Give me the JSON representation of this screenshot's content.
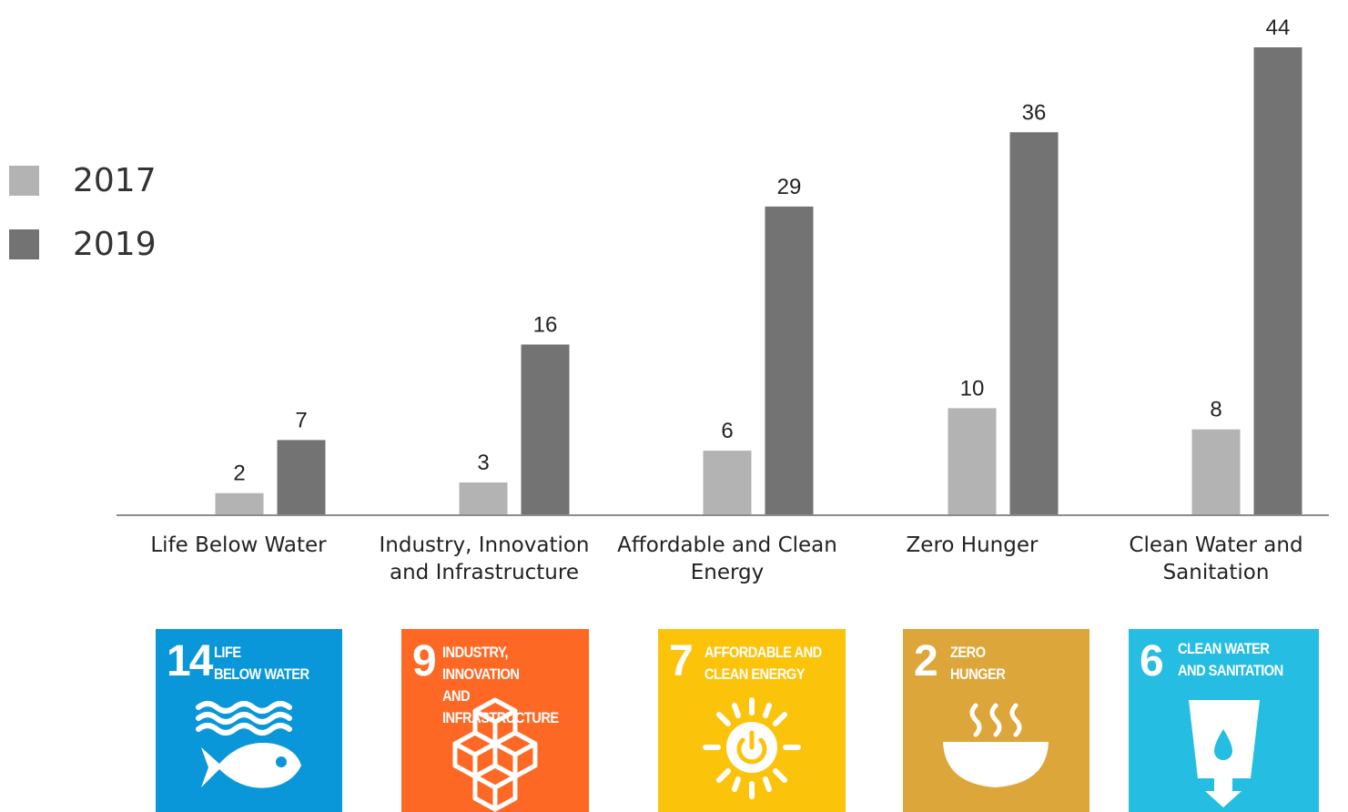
{
  "chart_data": {
    "type": "bar",
    "categories": [
      "Life Below Water",
      "Industry, Innovation and Infrastructure",
      "Affordable and Clean Energy",
      "Zero Hunger",
      "Clean Water and Sanitation"
    ],
    "category_label_lines": [
      [
        "Life Below Water"
      ],
      [
        "Industry, Innovation",
        "and Infrastructure"
      ],
      [
        "Affordable and Clean",
        "Energy"
      ],
      [
        "Zero Hunger"
      ],
      [
        "Clean Water and",
        "Sanitation"
      ]
    ],
    "series": [
      {
        "name": "2017",
        "color": "#b3b3b3",
        "values": [
          2,
          3,
          6,
          10,
          8
        ]
      },
      {
        "name": "2019",
        "color": "#737373",
        "values": [
          7,
          16,
          29,
          36,
          44
        ]
      }
    ],
    "ylim": [
      0,
      44
    ],
    "grid": false,
    "legend_position": "left",
    "data_labels": true
  },
  "legend": {
    "items": [
      {
        "label": "2017",
        "color": "#b3b3b3"
      },
      {
        "label": "2019",
        "color": "#737373"
      }
    ]
  },
  "sdg_tiles": [
    {
      "number": "14",
      "title": "LIFE\nBELOW WATER",
      "color": "#0a97d9",
      "icon": "fish-waves-icon"
    },
    {
      "number": "9",
      "title": "INDUSTRY, INNOVATION\nAND INFRASTRUCTURE",
      "color": "#fd6925",
      "icon": "cubes-icon"
    },
    {
      "number": "7",
      "title": "AFFORDABLE AND\nCLEAN ENERGY",
      "color": "#fcc30b",
      "icon": "sun-power-icon"
    },
    {
      "number": "2",
      "title": "ZERO\nHUNGER",
      "color": "#dda63a",
      "icon": "bowl-icon"
    },
    {
      "number": "6",
      "title": "CLEAN WATER\nAND SANITATION",
      "color": "#26bde2",
      "icon": "water-glass-icon"
    }
  ]
}
